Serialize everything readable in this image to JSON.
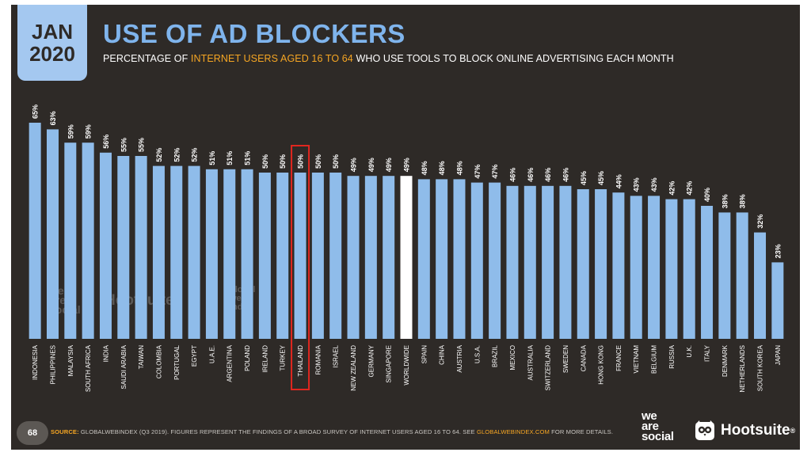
{
  "badge": {
    "month": "JAN",
    "year": "2020"
  },
  "header": {
    "title": "USE OF AD BLOCKERS",
    "subtitle_pre": "PERCENTAGE OF ",
    "subtitle_highlight": "INTERNET USERS AGED 16 TO 64",
    "subtitle_post": " WHO USE TOOLS TO BLOCK ONLINE ADVERTISING EACH MONTH"
  },
  "colors": {
    "background": "#2e2a27",
    "bar": "#8fbcea",
    "highlight_bar": "#ffffff",
    "highlight_box": "#e0261f",
    "accent": "#f6a623",
    "label": "#ffffff"
  },
  "chart_data": {
    "type": "bar",
    "categories": [
      "INDONESIA",
      "PHILIPPINES",
      "MALAYSIA",
      "SOUTH AFRICA",
      "INDIA",
      "SAUDI ARABIA",
      "TAIWAN",
      "COLOMBIA",
      "PORTUGAL",
      "EGYPT",
      "U.A.E.",
      "ARGENTINA",
      "POLAND",
      "IRELAND",
      "TURKEY",
      "THAILAND",
      "ROMANIA",
      "ISRAEL",
      "NEW ZEALAND",
      "GERMANY",
      "SINGAPORE",
      "WORLDWIDE",
      "SPAIN",
      "CHINA",
      "AUSTRIA",
      "U.S.A.",
      "BRAZIL",
      "MEXICO",
      "AUSTRALIA",
      "SWITZERLAND",
      "SWEDEN",
      "CANADA",
      "HONG KONG",
      "FRANCE",
      "VIETNAM",
      "BELGIUM",
      "RUSSIA",
      "U.K.",
      "ITALY",
      "DENMARK",
      "NETHERLANDS",
      "SOUTH KOREA",
      "JAPAN"
    ],
    "values": [
      65,
      63,
      59,
      59,
      56,
      55,
      55,
      52,
      52,
      52,
      51,
      51,
      51,
      50,
      50,
      50,
      50,
      50,
      49,
      49,
      49,
      49,
      48,
      48,
      48,
      47,
      47,
      46,
      46,
      46,
      46,
      45,
      45,
      44,
      43,
      43,
      42,
      42,
      40,
      38,
      38,
      32,
      23
    ],
    "value_labels": [
      "65%",
      "63%",
      "59%",
      "59%",
      "56%",
      "55%",
      "55%",
      "52%",
      "52%",
      "52%",
      "51%",
      "51%",
      "51%",
      "50%",
      "50%",
      "50%",
      "50%",
      "50%",
      "49%",
      "49%",
      "49%",
      "49%",
      "48%",
      "48%",
      "48%",
      "47%",
      "47%",
      "46%",
      "46%",
      "46%",
      "46%",
      "45%",
      "45%",
      "44%",
      "43%",
      "43%",
      "42%",
      "42%",
      "40%",
      "38%",
      "38%",
      "32%",
      "23%"
    ],
    "highlight_white": "WORLDWIDE",
    "highlight_boxed": "THAILAND",
    "ylim": [
      0,
      65
    ],
    "grid": false,
    "legend": "none"
  },
  "footer": {
    "page_number": "68",
    "source_label": "SOURCE:",
    "source_text": " GLOBALWEBINDEX (Q3 2019). FIGURES REPRESENT THE FINDINGS OF A BROAD SURVEY OF INTERNET USERS AGED 16 TO 64. SEE ",
    "source_link": "GLOBALWEBINDEX.COM",
    "source_tail": " FOR MORE DETAILS.",
    "logo_wearesocial": [
      "we",
      "are",
      "social"
    ],
    "logo_hootsuite": "Hootsuite",
    "trademark": "®"
  },
  "watermarks": {
    "wearesocial": [
      "we",
      "are",
      "social"
    ],
    "hootsuite": "Hootsuite",
    "gwi": [
      "global",
      "web",
      "index"
    ]
  }
}
